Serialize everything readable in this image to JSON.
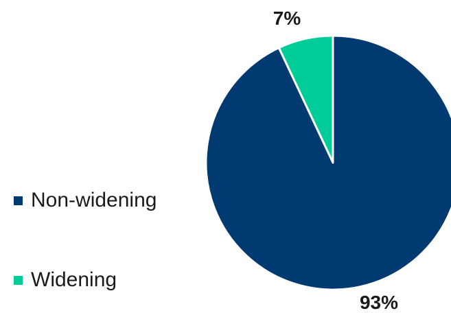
{
  "chart_data": {
    "type": "pie",
    "categories": [
      "Non-widening",
      "Widening"
    ],
    "values": [
      93,
      7
    ],
    "data_labels": [
      "93%",
      "7%"
    ],
    "colors": [
      "#003a70",
      "#00cc99"
    ],
    "title": "",
    "legend_placement": "left",
    "start_angle_deg": 0,
    "direction": "clockwise"
  },
  "legend": {
    "items": [
      {
        "label": "Non-widening",
        "color": "#003a70"
      },
      {
        "label": "Widening",
        "color": "#00cc99"
      }
    ]
  }
}
